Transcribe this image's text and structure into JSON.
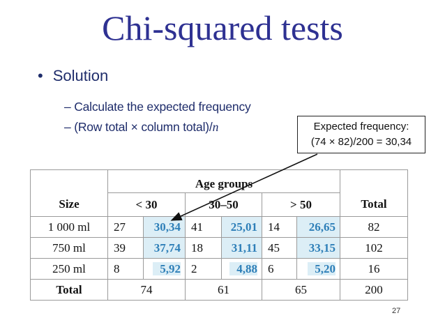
{
  "title": "Chi-squared tests",
  "bullet": "Solution",
  "sub_items": [
    "Calculate the expected frequency",
    "(Row total × column total)/",
    "n"
  ],
  "callout": {
    "line1": "Expected frequency:",
    "line2": "(74 × 82)/200 = 30,34"
  },
  "table": {
    "group_header": "Age groups",
    "size_header": "Size",
    "total_header": "Total",
    "columns": [
      "< 30",
      "30–50",
      "> 50"
    ],
    "rows": [
      {
        "size": "1 000 ml",
        "cells": [
          [
            "27",
            "30,34"
          ],
          [
            "41",
            "25,01"
          ],
          [
            "14",
            "26,65"
          ]
        ],
        "total": "82"
      },
      {
        "size": "750 ml",
        "cells": [
          [
            "39",
            "37,74"
          ],
          [
            "18",
            "31,11"
          ],
          [
            "45",
            "33,15"
          ]
        ],
        "total": "102"
      },
      {
        "size": "250 ml",
        "cells": [
          [
            "8",
            "5,92"
          ],
          [
            "2",
            "4,88"
          ],
          [
            "6",
            "5,20"
          ]
        ],
        "total": "16"
      }
    ],
    "totals_row": {
      "label": "Total",
      "values": [
        "74",
        "61",
        "65"
      ],
      "grand_total": "200"
    }
  },
  "page_number": "27",
  "colors": {
    "title": "#2e3192",
    "text": "#1f2d6b",
    "expected_value": "#2e7fb8",
    "highlight": "#dceef6"
  }
}
